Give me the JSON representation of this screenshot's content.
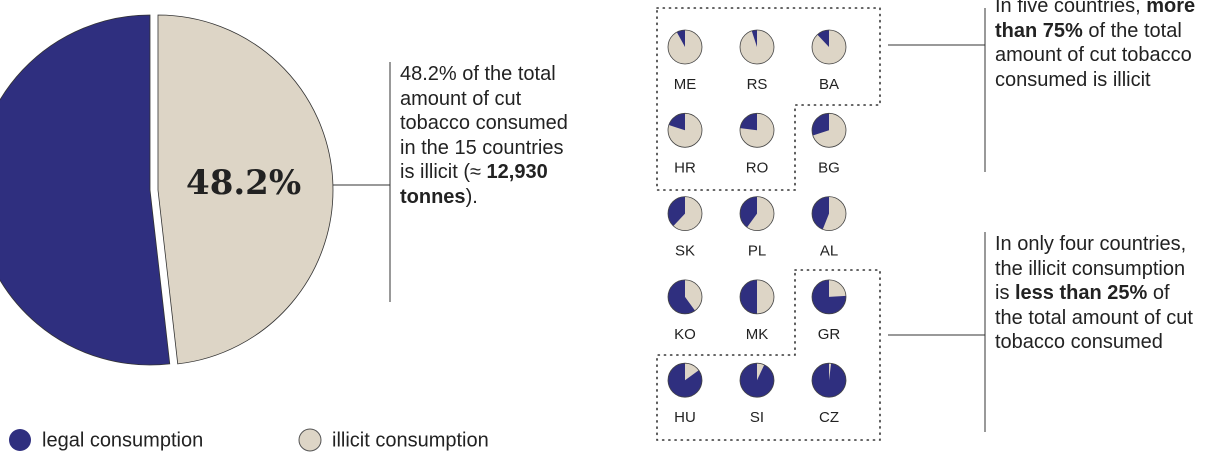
{
  "chart_data": [
    {
      "type": "pie",
      "categories": [
        "legal consumption",
        "illicit consumption"
      ],
      "values": [
        51.8,
        48.2
      ],
      "value_labels": [
        null,
        "48.2%"
      ],
      "colors": [
        "#2f2f7f",
        "#ddd5c6"
      ],
      "annotation": {
        "parts": [
          "48.2% of the total amount of cut tobacco consumed in the 15 countries is illicit (≈ ",
          "12,930 tonnes",
          ")."
        ],
        "bold": [
          false,
          true,
          false
        ]
      }
    },
    {
      "type": "pie_grid",
      "categories": [
        "ME",
        "RS",
        "BA",
        "HR",
        "RO",
        "BG",
        "SK",
        "PL",
        "AL",
        "KO",
        "MK",
        "GR",
        "HU",
        "SI",
        "CZ"
      ],
      "values": [
        92,
        95,
        88,
        80,
        77,
        70,
        62,
        60,
        56,
        40,
        50,
        24,
        15,
        7,
        2
      ],
      "colors": [
        "#2f2f7f",
        "#ddd5c6"
      ],
      "annotations": [
        {
          "parts": [
            "In five countries, ",
            "more than 75%",
            " of the total amount of cut tobacco consumed is illicit"
          ],
          "bold": [
            false,
            true,
            false
          ]
        },
        {
          "parts": [
            "In only four countries, the illicit consumption is ",
            "less than 25%",
            " of the total amount of cut tobacco consumed"
          ],
          "bold": [
            false,
            true,
            false
          ]
        }
      ]
    }
  ]
}
